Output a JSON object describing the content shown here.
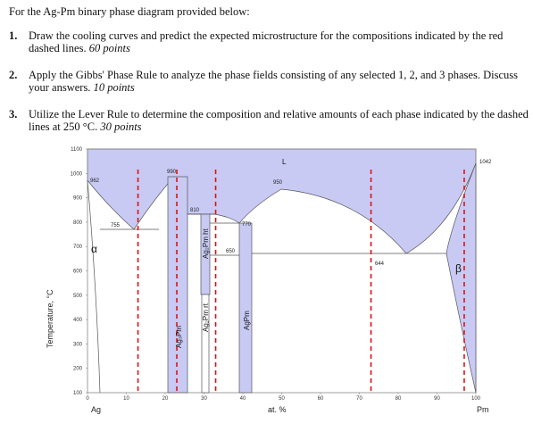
{
  "header": {
    "intro": "For the Ag-Pm binary phase diagram provided below:"
  },
  "questions": [
    {
      "number": "1.",
      "text": "Draw the cooling curves and predict the expected microstructure for the compositions indicated by the red dashed lines.",
      "points": "60 points"
    },
    {
      "number": "2.",
      "text": "Apply the Gibbs' Phase Rule to analyze the phase fields consisting of any selected 1, 2, and 3 phases. Discuss your answers.",
      "points": "10 points"
    },
    {
      "number": "3.",
      "text": "Utilize the Lever Rule to determine the composition and relative amounts of each phase indicated by the dashed lines at 250 °C.",
      "points": "30 points"
    }
  ],
  "chart_data": {
    "type": "phase-diagram",
    "ylabel": "Temperature, °C",
    "xlabel": "at. %",
    "x_end_left": "Ag",
    "x_end_right": "Pm",
    "xlim": [
      0,
      100
    ],
    "ylim": [
      100,
      1100
    ],
    "xticks": [
      0,
      10,
      20,
      30,
      40,
      50,
      60,
      70,
      80,
      90,
      100
    ],
    "yticks": [
      100,
      200,
      300,
      400,
      500,
      600,
      700,
      800,
      900,
      1000,
      1100
    ],
    "accent_color": "#c8caf4",
    "liquid_label": "L",
    "phase_labels": {
      "alpha": "α",
      "beta": "β",
      "ag3pm": "Ag₃Pm",
      "ag2pm_ht": "Ag₂Pm ht",
      "ag2pm_rt": "Ag₂Pm rt",
      "agpm": "AgPm"
    },
    "temperature_annotations": [
      "962",
      "990",
      "755",
      "810",
      "770",
      "650",
      "950",
      "644",
      "1042"
    ],
    "dashed_compositions_at_pct": [
      13,
      23,
      33,
      73,
      97
    ],
    "dashed_line_color": "#dd1111"
  }
}
